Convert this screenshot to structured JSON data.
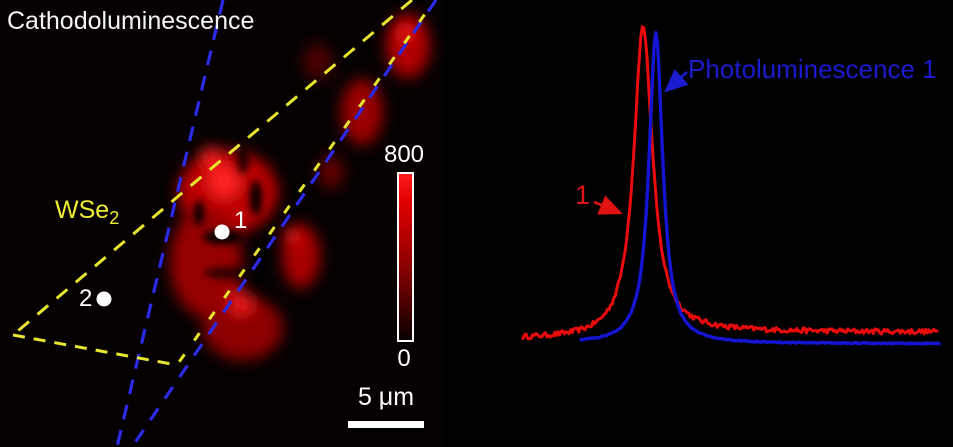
{
  "left_panel": {
    "title": "Cathodoluminescence",
    "material_label": {
      "base": "WSe",
      "subscript": "2"
    },
    "points": [
      {
        "label": "1"
      },
      {
        "label": "2"
      }
    ],
    "colorbar": {
      "max": "800",
      "min": "0",
      "top_color": "#ff1d1d",
      "bottom_color": "#0b0000"
    },
    "scale_bar": {
      "label": "5 μm"
    },
    "overlay_colors": {
      "blue": "#2a2ae8",
      "yellow": "#e6e62e"
    }
  },
  "right_panel": {
    "annotations": [
      {
        "text": "1",
        "color": "#e01212"
      },
      {
        "text": "Photoluminescence 1",
        "color": "#1b1bd0"
      }
    ]
  },
  "chart_data": {
    "type": "line",
    "title": "",
    "xlabel": "",
    "ylabel": "",
    "axes_visible": false,
    "legend_position": "none",
    "x_range_normalized": [
      0,
      1
    ],
    "y_range_normalized": [
      0,
      1
    ],
    "series": [
      {
        "name": "1",
        "description": "cathodoluminescence spectrum at point 1, noisy",
        "color": "#ea0c0c",
        "x_start": 0.0,
        "x_end": 1.0,
        "peak_center": 0.29,
        "peak_fwhm": 0.055,
        "amplitude": 0.98,
        "baseline_left": 0.015,
        "baseline_right": 0.038,
        "noise": 0.016,
        "samples": 260
      },
      {
        "name": "Photoluminescence 1",
        "description": "photoluminescence spectrum at point 1, smooth, peak red-shifted right of CL peak",
        "color": "#1414d2",
        "x_start": 0.14,
        "x_end": 1.005,
        "peak_center": 0.321,
        "peak_fwhm": 0.04,
        "amplitude": 0.985,
        "baseline_left": 0.001,
        "baseline_right": 0.001,
        "noise": 0.004,
        "samples": 220
      }
    ]
  }
}
